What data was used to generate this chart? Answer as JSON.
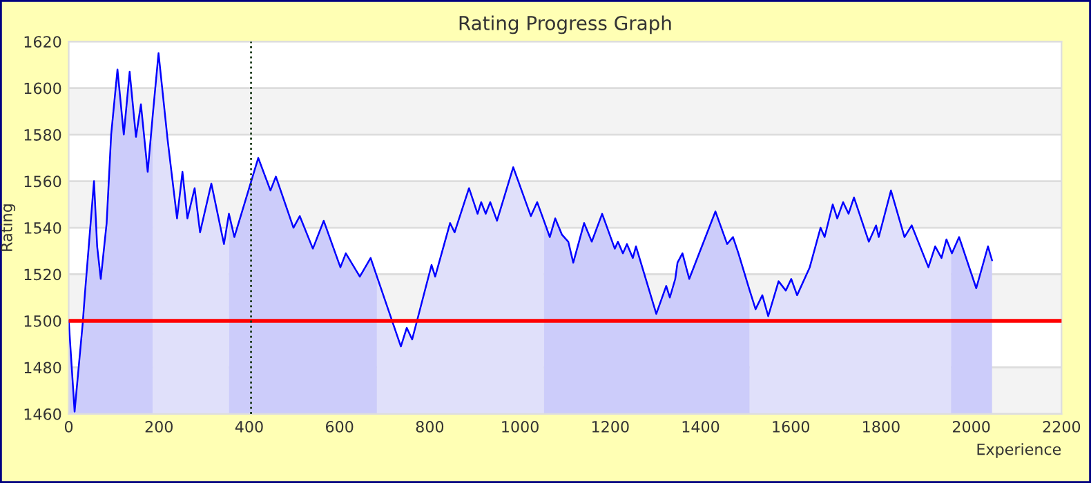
{
  "chart_data": {
    "type": "line",
    "title": "Rating Progress Graph",
    "xlabel": "Experience",
    "ylabel": "Rating",
    "xlim": [
      0,
      2200
    ],
    "xticks": [
      0,
      200,
      400,
      600,
      800,
      1000,
      1200,
      1400,
      1600,
      1800,
      2000,
      2200
    ],
    "ylim": [
      1460,
      1620
    ],
    "yticks": [
      1460,
      1480,
      1500,
      1520,
      1540,
      1560,
      1580,
      1600,
      1620
    ],
    "grid": "y",
    "marker": "none",
    "line_style": "solid",
    "series": [
      {
        "type": "area",
        "color": "#ccccfa",
        "x": [
          0,
          13,
          31,
          36,
          46,
          56,
          63,
          71,
          84,
          94,
          108,
          122,
          135,
          149,
          160,
          175,
          186
        ],
        "values": [
          1500,
          1461,
          1499,
          1512,
          1536,
          1560,
          1532,
          1518,
          1542,
          1580,
          1608,
          1580,
          1607,
          1579,
          1593,
          1564,
          1588
        ]
      },
      {
        "type": "area",
        "color": "#e0e0fa",
        "x": [
          186,
          199,
          219,
          240,
          252,
          263,
          279,
          291,
          316,
          344,
          355
        ],
        "values": [
          1588,
          1615,
          1578,
          1544,
          1564,
          1544,
          1557,
          1538,
          1559,
          1533,
          1546
        ]
      },
      {
        "type": "area",
        "color": "#ccccfa",
        "x": [
          355,
          367,
          420,
          447,
          459,
          498,
          512,
          541,
          565,
          602,
          614,
          645,
          669,
          683
        ],
        "values": [
          1546,
          1536,
          1570,
          1556,
          1562,
          1540,
          1545,
          1531,
          1543,
          1523,
          1529,
          1519,
          1527,
          1519
        ]
      },
      {
        "type": "area",
        "color": "#e0e0fa",
        "x": [
          683,
          736,
          749,
          761,
          804,
          812,
          845,
          855,
          887,
          906,
          914,
          924,
          934,
          949,
          985,
          1024,
          1038,
          1053
        ],
        "values": [
          1519,
          1489,
          1497,
          1492,
          1524,
          1519,
          1542,
          1538,
          1557,
          1546,
          1551,
          1546,
          1551,
          1543,
          1566,
          1545,
          1551,
          1543
        ]
      },
      {
        "type": "area",
        "color": "#ccccfa",
        "x": [
          1053,
          1066,
          1078,
          1093,
          1107,
          1118,
          1142,
          1159,
          1182,
          1210,
          1217,
          1228,
          1237,
          1250,
          1257,
          1302,
          1324,
          1332,
          1344,
          1349,
          1360,
          1375,
          1433,
          1459,
          1472,
          1484,
          1509
        ],
        "values": [
          1543,
          1536,
          1544,
          1537,
          1534,
          1525,
          1542,
          1534,
          1546,
          1531,
          1534,
          1529,
          1533,
          1527,
          1532,
          1503,
          1515,
          1510,
          1518,
          1525,
          1529,
          1518,
          1547,
          1533,
          1536,
          1529,
          1513
        ]
      },
      {
        "type": "area",
        "color": "#e0e0fa",
        "x": [
          1509,
          1522,
          1537,
          1550,
          1573,
          1589,
          1601,
          1614,
          1642,
          1666,
          1675,
          1693,
          1703,
          1716,
          1728,
          1740,
          1773,
          1789,
          1795,
          1822,
          1852,
          1868,
          1905,
          1920,
          1934,
          1945,
          1955
        ],
        "values": [
          1513,
          1505,
          1511,
          1502,
          1517,
          1513,
          1518,
          1511,
          1523,
          1540,
          1536,
          1550,
          1544,
          1551,
          1546,
          1553,
          1534,
          1541,
          1536,
          1556,
          1536,
          1541,
          1523,
          1532,
          1527,
          1535,
          1530
        ]
      },
      {
        "type": "area",
        "color": "#ccccfa",
        "x": [
          1955,
          1957,
          1973,
          2011,
          2037,
          2046
        ],
        "values": [
          1530,
          1529,
          1536,
          1514,
          1532,
          1526
        ]
      },
      {
        "color": "#0000ff",
        "x": [
          0,
          13,
          31,
          36,
          46,
          56,
          63,
          71,
          84,
          94,
          108,
          122,
          135,
          149,
          160,
          175,
          186,
          199,
          219,
          240,
          252,
          263,
          279,
          291,
          316,
          344,
          355,
          367,
          420,
          447,
          459,
          498,
          512,
          541,
          565,
          602,
          614,
          645,
          669,
          683,
          736,
          749,
          761,
          804,
          812,
          845,
          855,
          887,
          906,
          914,
          924,
          934,
          949,
          985,
          1024,
          1038,
          1053,
          1066,
          1078,
          1093,
          1107,
          1118,
          1142,
          1159,
          1182,
          1210,
          1217,
          1228,
          1237,
          1250,
          1257,
          1302,
          1324,
          1332,
          1344,
          1349,
          1360,
          1375,
          1433,
          1459,
          1472,
          1484,
          1509,
          1522,
          1537,
          1550,
          1573,
          1589,
          1601,
          1614,
          1642,
          1666,
          1675,
          1693,
          1703,
          1716,
          1728,
          1740,
          1773,
          1789,
          1795,
          1822,
          1852,
          1868,
          1905,
          1920,
          1934,
          1945,
          1955,
          1957,
          1973,
          2011,
          2037,
          2046
        ],
        "values": [
          1500,
          1461,
          1499,
          1512,
          1536,
          1560,
          1532,
          1518,
          1542,
          1580,
          1608,
          1580,
          1607,
          1579,
          1593,
          1564,
          1588,
          1615,
          1578,
          1544,
          1564,
          1544,
          1557,
          1538,
          1559,
          1533,
          1546,
          1536,
          1570,
          1556,
          1562,
          1540,
          1545,
          1531,
          1543,
          1523,
          1529,
          1519,
          1527,
          1519,
          1489,
          1497,
          1492,
          1524,
          1519,
          1542,
          1538,
          1557,
          1546,
          1551,
          1546,
          1551,
          1543,
          1566,
          1545,
          1551,
          1543,
          1536,
          1544,
          1537,
          1534,
          1525,
          1542,
          1534,
          1546,
          1531,
          1534,
          1529,
          1533,
          1527,
          1532,
          1503,
          1515,
          1510,
          1518,
          1525,
          1529,
          1518,
          1547,
          1533,
          1536,
          1529,
          1513,
          1505,
          1511,
          1502,
          1517,
          1513,
          1518,
          1511,
          1523,
          1540,
          1536,
          1550,
          1544,
          1551,
          1546,
          1553,
          1534,
          1541,
          1536,
          1556,
          1536,
          1541,
          1523,
          1532,
          1527,
          1535,
          1530,
          1529,
          1536,
          1514,
          1532,
          1526
        ]
      }
    ],
    "ref_lines": [
      {
        "axis": "y",
        "value": 1500,
        "color": "#ff0000",
        "line_style": "solid"
      },
      {
        "axis": "x",
        "value": 404,
        "color": "#1a3a1a",
        "line_style": "dotted"
      }
    ]
  }
}
